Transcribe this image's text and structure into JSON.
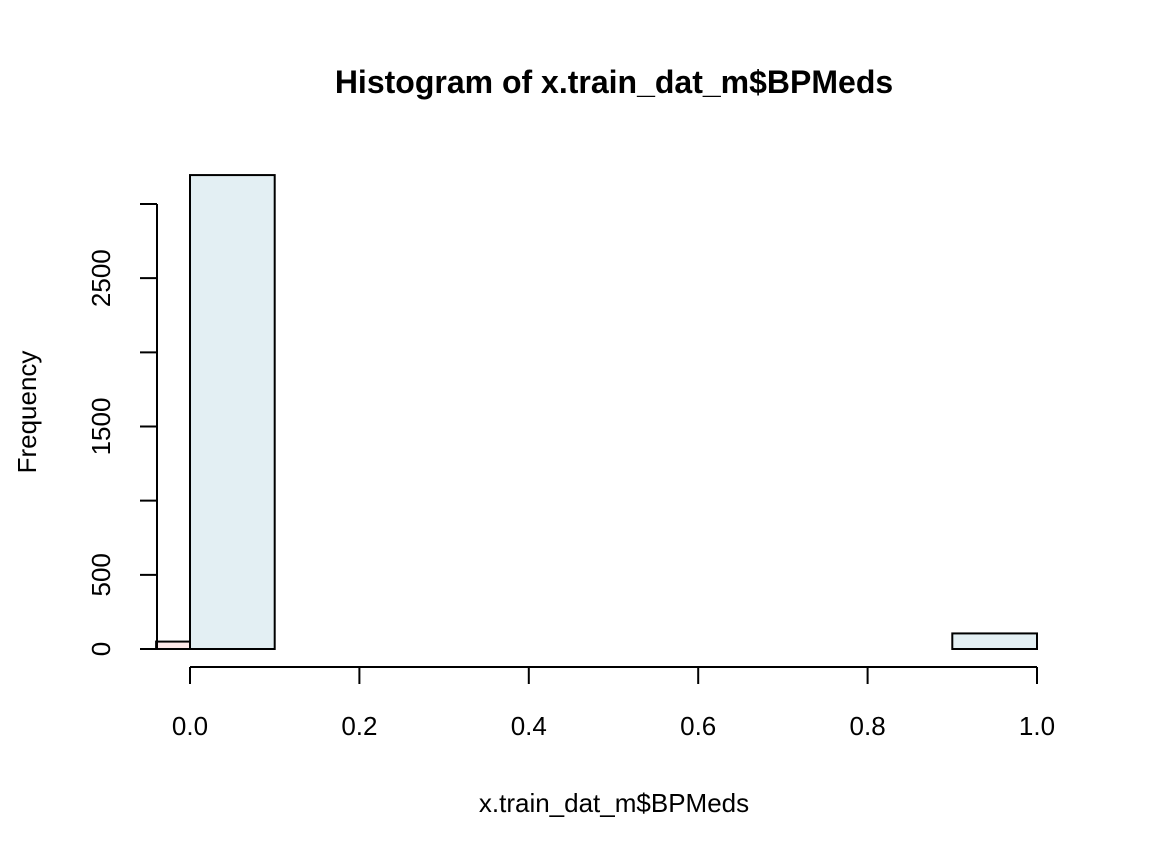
{
  "chart_data": {
    "type": "bar",
    "title": "Histogram of x.train_dat_m$BPMeds",
    "xlabel": "x.train_dat_m$BPMeds",
    "ylabel": "Frequency",
    "xlim": [
      -0.04,
      1.0
    ],
    "ylim": [
      0,
      3000
    ],
    "x_ticks": [
      0.0,
      0.2,
      0.4,
      0.6,
      0.8,
      1.0
    ],
    "x_tick_labels": [
      "0.0",
      "0.2",
      "0.4",
      "0.6",
      "0.8",
      "1.0"
    ],
    "y_ticks": [
      0,
      500,
      1000,
      1500,
      2000,
      2500,
      3000
    ],
    "y_tick_labels": [
      "0",
      "500",
      "",
      "1500",
      "",
      "2500",
      ""
    ],
    "series": [
      {
        "color": "#e3eff3",
        "bins": [
          {
            "x0": 0.0,
            "x1": 0.1,
            "count": 3195
          },
          {
            "x0": 0.1,
            "x1": 0.2,
            "count": 0
          },
          {
            "x0": 0.2,
            "x1": 0.3,
            "count": 0
          },
          {
            "x0": 0.3,
            "x1": 0.4,
            "count": 0
          },
          {
            "x0": 0.4,
            "x1": 0.5,
            "count": 0
          },
          {
            "x0": 0.5,
            "x1": 0.6,
            "count": 0
          },
          {
            "x0": 0.6,
            "x1": 0.7,
            "count": 0
          },
          {
            "x0": 0.7,
            "x1": 0.8,
            "count": 0
          },
          {
            "x0": 0.8,
            "x1": 0.9,
            "count": 0
          },
          {
            "x0": 0.9,
            "x1": 1.0,
            "count": 105
          }
        ]
      },
      {
        "color": "#fce8e8",
        "bins": [
          {
            "x0": -0.04,
            "x1": 0.0,
            "count": 50
          }
        ]
      }
    ]
  }
}
